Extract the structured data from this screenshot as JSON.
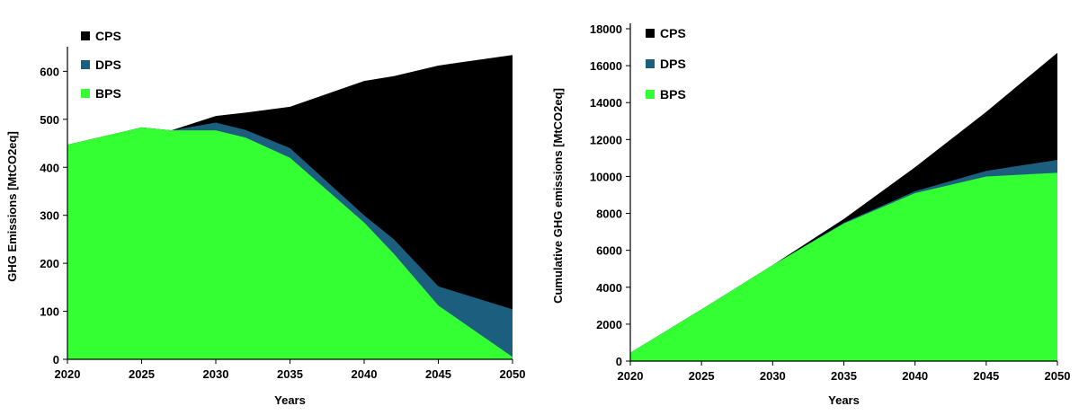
{
  "colors": {
    "CPS": "#000000",
    "DPS": "#1b5e7e",
    "BPS": "#33ff33"
  },
  "chart_data": [
    {
      "type": "area",
      "xlabel": "Years",
      "ylabel": "GHG Emissions [MtCO2eq]",
      "xlim": [
        2020,
        2050
      ],
      "ylim": [
        0,
        640
      ],
      "xticks": [
        2020,
        2025,
        2030,
        2035,
        2040,
        2045,
        2050
      ],
      "yticks": [
        0,
        100,
        200,
        300,
        400,
        500,
        600
      ],
      "legend": {
        "placement": "top-left",
        "entries": [
          "CPS",
          "DPS",
          "BPS"
        ]
      },
      "series": [
        {
          "name": "CPS",
          "x": [
            2020,
            2025,
            2027,
            2030,
            2032,
            2035,
            2040,
            2042,
            2045,
            2050
          ],
          "values": [
            447,
            483,
            477,
            507,
            514,
            526,
            580,
            590,
            612,
            634
          ]
        },
        {
          "name": "DPS",
          "x": [
            2020,
            2025,
            2027,
            2030,
            2032,
            2035,
            2040,
            2042,
            2045,
            2050
          ],
          "values": [
            447,
            483,
            477,
            493,
            478,
            440,
            300,
            250,
            152,
            104
          ]
        },
        {
          "name": "BPS",
          "x": [
            2020,
            2025,
            2027,
            2030,
            2032,
            2035,
            2040,
            2042,
            2045,
            2050
          ],
          "values": [
            447,
            483,
            477,
            477,
            462,
            420,
            285,
            220,
            112,
            5
          ]
        }
      ]
    },
    {
      "type": "area",
      "xlabel": "Years",
      "ylabel": "Cumulative GHG emissions [MtCO2eq]",
      "xlim": [
        2020,
        2050
      ],
      "ylim": [
        0,
        18000
      ],
      "xticks": [
        2020,
        2025,
        2030,
        2035,
        2040,
        2045,
        2050
      ],
      "yticks": [
        0,
        2000,
        4000,
        6000,
        8000,
        10000,
        12000,
        14000,
        16000,
        18000
      ],
      "legend": {
        "placement": "top-left",
        "entries": [
          "CPS",
          "DPS",
          "BPS"
        ]
      },
      "series": [
        {
          "name": "CPS",
          "x": [
            2020,
            2025,
            2030,
            2035,
            2040,
            2045,
            2050
          ],
          "values": [
            450,
            2800,
            5200,
            7700,
            10500,
            13500,
            16700
          ]
        },
        {
          "name": "DPS",
          "x": [
            2020,
            2025,
            2030,
            2035,
            2040,
            2045,
            2050
          ],
          "values": [
            450,
            2800,
            5200,
            7500,
            9200,
            10300,
            10900
          ]
        },
        {
          "name": "BPS",
          "x": [
            2020,
            2025,
            2030,
            2035,
            2040,
            2045,
            2050
          ],
          "values": [
            450,
            2800,
            5200,
            7450,
            9100,
            10000,
            10200
          ]
        }
      ]
    }
  ]
}
